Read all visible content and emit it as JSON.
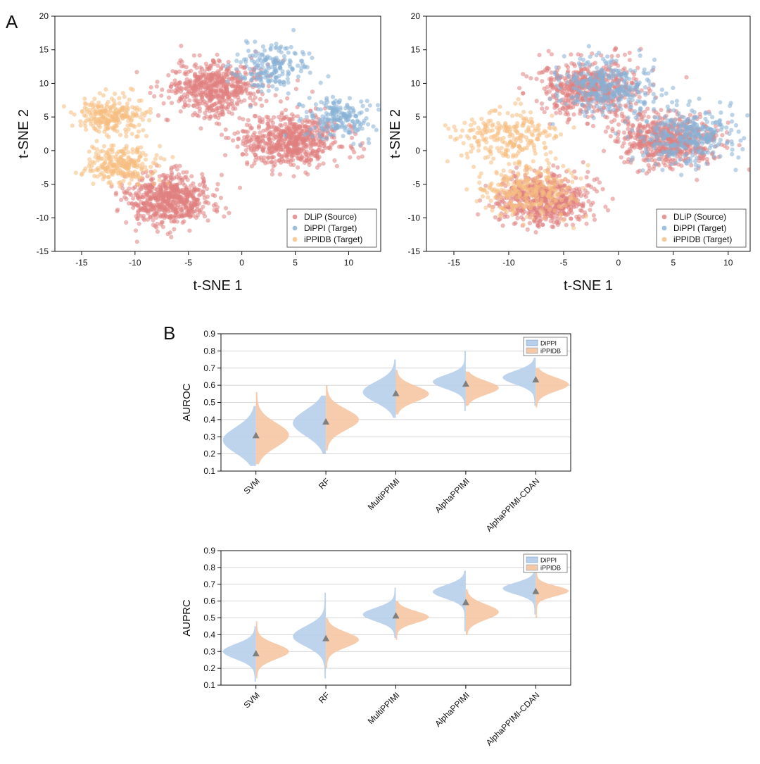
{
  "panel_labels": {
    "a": "A",
    "b": "B"
  },
  "colors": {
    "dlip": "#e08080",
    "dippi": "#86b0d6",
    "ippidb": "#f5be80",
    "violin_blue": "#b8d0ec",
    "violin_orange": "#f5c8a6",
    "marker": "#808080"
  },
  "chart_data": [
    {
      "type": "scatter",
      "panel": "A-left",
      "xlabel": "t-SNE 1",
      "ylabel": "t-SNE 2",
      "xlim": [
        -17.5,
        13
      ],
      "ylim": [
        -15,
        20
      ],
      "xticks": [
        "-15",
        "-10",
        "-5",
        "0",
        "5",
        "10"
      ],
      "yticks": [
        "-15",
        "-10",
        "-5",
        "0",
        "5",
        "10",
        "15",
        "20"
      ],
      "legend": [
        "DLiP (Source)",
        "DiPPI (Target)",
        "iPPIDB (Target)"
      ],
      "legend_position": "bottom-right",
      "series": [
        {
          "name": "DLiP (Source)",
          "color_key": "dlip",
          "clusters": [
            {
              "cx": -6.8,
              "cy": -7.3,
              "sx": 2.0,
              "sy": 1.9,
              "n": 620
            },
            {
              "cx": -2.6,
              "cy": 9.3,
              "sx": 2.3,
              "sy": 2.0,
              "n": 560
            },
            {
              "cx": 4.6,
              "cy": 1.5,
              "sx": 2.3,
              "sy": 1.9,
              "n": 620
            }
          ]
        },
        {
          "name": "DiPPI (Target)",
          "color_key": "dippi",
          "clusters": [
            {
              "cx": 2.6,
              "cy": 12.3,
              "sx": 1.6,
              "sy": 1.7,
              "n": 190
            },
            {
              "cx": 9.0,
              "cy": 5.0,
              "sx": 1.6,
              "sy": 1.6,
              "n": 190
            }
          ]
        },
        {
          "name": "iPPIDB (Target)",
          "color_key": "ippidb",
          "clusters": [
            {
              "cx": -12.2,
              "cy": 5.3,
              "sx": 1.6,
              "sy": 1.4,
              "n": 240
            },
            {
              "cx": -11.3,
              "cy": -2.0,
              "sx": 1.6,
              "sy": 1.4,
              "n": 240
            }
          ]
        }
      ]
    },
    {
      "type": "scatter",
      "panel": "A-right",
      "xlabel": "t-SNE 1",
      "ylabel": "t-SNE 2",
      "xlim": [
        -17.5,
        12
      ],
      "ylim": [
        -15,
        20
      ],
      "xticks": [
        "-15",
        "-10",
        "-5",
        "0",
        "5",
        "10"
      ],
      "yticks": [
        "-15",
        "-10",
        "-5",
        "0",
        "5",
        "10",
        "15",
        "20"
      ],
      "legend": [
        "DLiP (Source)",
        "DiPPI (Target)",
        "iPPIDB (Target)"
      ],
      "legend_position": "bottom-right",
      "series": [
        {
          "name": "DLiP (Source)",
          "color_key": "dlip",
          "clusters": [
            {
              "cx": -6.8,
              "cy": -7.3,
              "sx": 2.0,
              "sy": 1.9,
              "n": 620
            },
            {
              "cx": -2.6,
              "cy": 9.3,
              "sx": 2.3,
              "sy": 2.0,
              "n": 560
            },
            {
              "cx": 4.6,
              "cy": 1.5,
              "sx": 2.3,
              "sy": 1.9,
              "n": 620
            }
          ]
        },
        {
          "name": "DiPPI (Target)",
          "color_key": "dippi",
          "clusters": [
            {
              "cx": -1.0,
              "cy": 9.5,
              "sx": 2.2,
              "sy": 2.0,
              "n": 330
            },
            {
              "cx": 6.0,
              "cy": 2.2,
              "sx": 2.2,
              "sy": 2.0,
              "n": 330
            }
          ]
        },
        {
          "name": "iPPIDB (Target)",
          "color_key": "ippidb",
          "clusters": [
            {
              "cx": -10.2,
              "cy": 2.3,
              "sx": 2.3,
              "sy": 1.9,
              "n": 240
            },
            {
              "cx": -8.2,
              "cy": -6.0,
              "sx": 2.2,
              "sy": 1.9,
              "n": 280
            }
          ]
        }
      ]
    },
    {
      "type": "violin",
      "panel": "B-top",
      "ylabel": "AUROC",
      "ylim": [
        0.1,
        0.9
      ],
      "yticks": [
        "0.1",
        "0.2",
        "0.3",
        "0.4",
        "0.5",
        "0.6",
        "0.7",
        "0.8",
        "0.9"
      ],
      "grid": true,
      "legend": [
        "DiPPI",
        "iPPIDB"
      ],
      "legend_position": "top-right",
      "categories": [
        "SVM",
        "RF",
        "MultiPPIMI",
        "AlphaPPIMI",
        "AlphaPPIMI-CDAN"
      ],
      "markers": [
        0.31,
        0.39,
        0.555,
        0.61,
        0.635
      ],
      "series": [
        {
          "name": "DiPPI",
          "side": "left",
          "color_key": "violin_blue",
          "medians": [
            0.28,
            0.38,
            0.56,
            0.62,
            0.645
          ],
          "spread": [
            0.075,
            0.075,
            0.06,
            0.04,
            0.04
          ],
          "min": [
            0.13,
            0.2,
            0.41,
            0.45,
            0.48
          ],
          "max": [
            0.48,
            0.54,
            0.75,
            0.8,
            0.76
          ]
        },
        {
          "name": "iPPIDB",
          "side": "right",
          "color_key": "violin_orange",
          "medians": [
            0.31,
            0.4,
            0.55,
            0.585,
            0.605
          ],
          "spread": [
            0.07,
            0.06,
            0.045,
            0.04,
            0.04
          ],
          "min": [
            0.14,
            0.22,
            0.43,
            0.48,
            0.47
          ],
          "max": [
            0.56,
            0.6,
            0.69,
            0.68,
            0.7
          ]
        }
      ]
    },
    {
      "type": "violin",
      "panel": "B-bottom",
      "ylabel": "AUPRC",
      "ylim": [
        0.1,
        0.9
      ],
      "yticks": [
        "0.1",
        "0.2",
        "0.3",
        "0.4",
        "0.5",
        "0.6",
        "0.7",
        "0.8",
        "0.9"
      ],
      "grid": true,
      "legend": [
        "DiPPI",
        "iPPIDB"
      ],
      "legend_position": "top-right",
      "categories": [
        "SVM",
        "RF",
        "MultiPPIMI",
        "AlphaPPIMI",
        "AlphaPPIMI-CDAN"
      ],
      "markers": [
        0.29,
        0.38,
        0.515,
        0.595,
        0.66
      ],
      "series": [
        {
          "name": "DiPPI",
          "side": "left",
          "color_key": "violin_blue",
          "medians": [
            0.3,
            0.39,
            0.52,
            0.655,
            0.675
          ],
          "spread": [
            0.045,
            0.06,
            0.04,
            0.04,
            0.035
          ],
          "min": [
            0.12,
            0.14,
            0.38,
            0.42,
            0.52
          ],
          "max": [
            0.45,
            0.65,
            0.68,
            0.78,
            0.79
          ]
        },
        {
          "name": "iPPIDB",
          "side": "right",
          "color_key": "violin_orange",
          "medians": [
            0.3,
            0.37,
            0.505,
            0.535,
            0.66
          ],
          "spread": [
            0.045,
            0.045,
            0.035,
            0.045,
            0.03
          ],
          "min": [
            0.14,
            0.2,
            0.37,
            0.4,
            0.5
          ],
          "max": [
            0.48,
            0.5,
            0.6,
            0.67,
            0.77
          ]
        }
      ]
    }
  ]
}
